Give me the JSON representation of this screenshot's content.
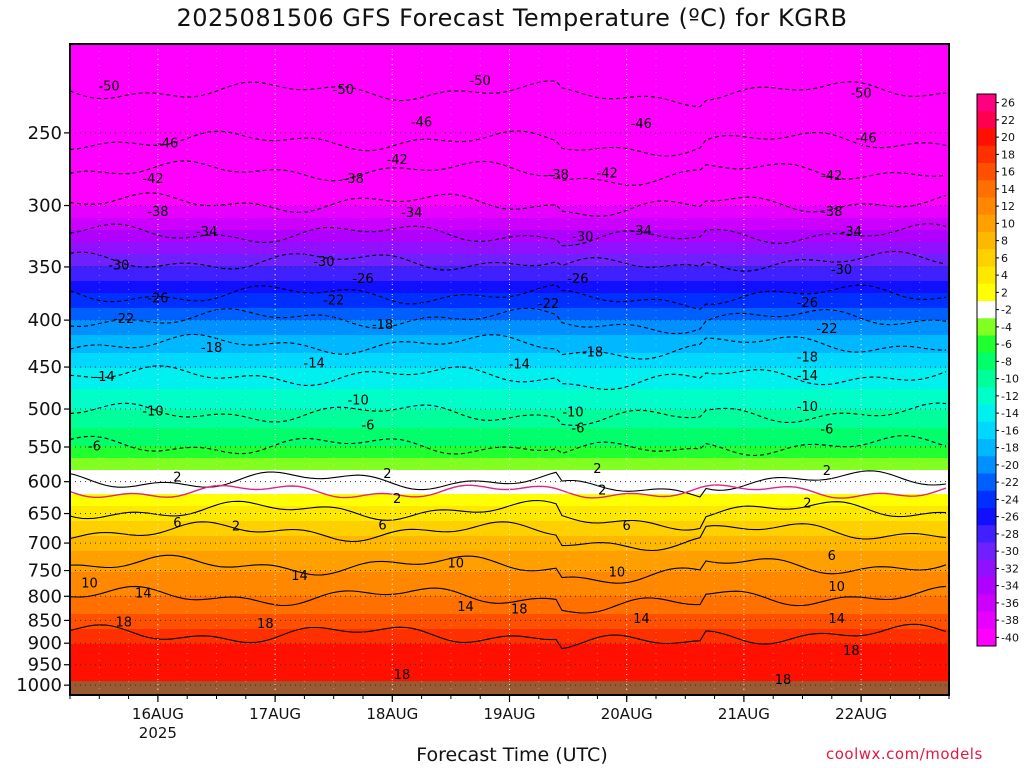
{
  "chart_data": {
    "type": "heatmap",
    "title": "2025081506 GFS Forecast Temperature (ºC) for KGRB",
    "xlabel": "Forecast Time (UTC)",
    "ylabel": "",
    "x_ticks": [
      {
        "label": "16AUG",
        "sublabel": "2025",
        "hours": 18
      },
      {
        "label": "17AUG",
        "sublabel": "",
        "hours": 42
      },
      {
        "label": "18AUG",
        "sublabel": "",
        "hours": 66
      },
      {
        "label": "19AUG",
        "sublabel": "",
        "hours": 90
      },
      {
        "label": "20AUG",
        "sublabel": "",
        "hours": 114
      },
      {
        "label": "21AUG",
        "sublabel": "",
        "hours": 138
      },
      {
        "label": "22AUG",
        "sublabel": "",
        "hours": 162
      }
    ],
    "xlim_hours": [
      0,
      180
    ],
    "y_ticks": [
      250,
      300,
      350,
      400,
      450,
      500,
      550,
      600,
      650,
      700,
      750,
      800,
      850,
      900,
      950,
      1000
    ],
    "ylim_hPa": [
      200,
      1025
    ],
    "y_scale": "log",
    "ground_level_hPa": 1000,
    "colorbar_ticks": [
      26,
      22,
      20,
      18,
      16,
      14,
      12,
      10,
      8,
      6,
      4,
      2,
      -2,
      -4,
      -6,
      -8,
      -10,
      -12,
      -14,
      -16,
      -18,
      -20,
      -22,
      -24,
      -26,
      -28,
      -30,
      -32,
      -34,
      -36,
      -38,
      -40
    ],
    "temperature_profile": [
      {
        "p": 210,
        "t": -53
      },
      {
        "p": 250,
        "t": -46
      },
      {
        "p": 300,
        "t": -38
      },
      {
        "p": 350,
        "t": -28
      },
      {
        "p": 400,
        "t": -20
      },
      {
        "p": 450,
        "t": -14
      },
      {
        "p": 500,
        "t": -10
      },
      {
        "p": 550,
        "t": -6
      },
      {
        "p": 600,
        "t": 0
      },
      {
        "p": 650,
        "t": 5
      },
      {
        "p": 700,
        "t": 9
      },
      {
        "p": 750,
        "t": 12
      },
      {
        "p": 800,
        "t": 14
      },
      {
        "p": 850,
        "t": 17
      },
      {
        "p": 900,
        "t": 20
      },
      {
        "p": 950,
        "t": 21
      },
      {
        "p": 1000,
        "t": 22
      }
    ],
    "contours": [
      {
        "label": "-50",
        "p": 225
      },
      {
        "label": "-46",
        "p": 255
      },
      {
        "label": "-42",
        "p": 275
      },
      {
        "label": "-38",
        "p": 298
      },
      {
        "label": "-34",
        "p": 322
      },
      {
        "label": "-30",
        "p": 345
      },
      {
        "label": "-26",
        "p": 375
      },
      {
        "label": "-22",
        "p": 398
      },
      {
        "label": "-18",
        "p": 425
      },
      {
        "label": "-14",
        "p": 460
      },
      {
        "label": "-10",
        "p": 505
      },
      {
        "label": "-6",
        "p": 548
      },
      {
        "label": "2",
        "p": 598
      },
      {
        "label": "2",
        "p": 645
      },
      {
        "label": "6",
        "p": 680
      },
      {
        "label": "10",
        "p": 740
      },
      {
        "label": "14",
        "p": 800
      },
      {
        "label": "18",
        "p": 880
      }
    ],
    "contour_labels": [
      {
        "label": "-50",
        "x": 8,
        "p": 222
      },
      {
        "label": "-50",
        "x": 56,
        "p": 224
      },
      {
        "label": "-50",
        "x": 84,
        "p": 219
      },
      {
        "label": "-50",
        "x": 162,
        "p": 226
      },
      {
        "label": "-46",
        "x": 20,
        "p": 256
      },
      {
        "label": "-46",
        "x": 72,
        "p": 243
      },
      {
        "label": "-46",
        "x": 117,
        "p": 244
      },
      {
        "label": "-46",
        "x": 163,
        "p": 253
      },
      {
        "label": "-42",
        "x": 17,
        "p": 280
      },
      {
        "label": "-42",
        "x": 67,
        "p": 267
      },
      {
        "label": "-42",
        "x": 110,
        "p": 276
      },
      {
        "label": "-42",
        "x": 156,
        "p": 278
      },
      {
        "label": "-38",
        "x": 18,
        "p": 304
      },
      {
        "label": "-38",
        "x": 58,
        "p": 280
      },
      {
        "label": "-38",
        "x": 100,
        "p": 277
      },
      {
        "label": "-38",
        "x": 156,
        "p": 304
      },
      {
        "label": "-34",
        "x": 28,
        "p": 320
      },
      {
        "label": "-34",
        "x": 70,
        "p": 305
      },
      {
        "label": "-34",
        "x": 117,
        "p": 319
      },
      {
        "label": "-34",
        "x": 160,
        "p": 320
      },
      {
        "label": "-30",
        "x": 10,
        "p": 348
      },
      {
        "label": "-30",
        "x": 52,
        "p": 345
      },
      {
        "label": "-30",
        "x": 105,
        "p": 324
      },
      {
        "label": "-30",
        "x": 158,
        "p": 352
      },
      {
        "label": "-26",
        "x": 18,
        "p": 378
      },
      {
        "label": "-26",
        "x": 60,
        "p": 360
      },
      {
        "label": "-26",
        "x": 104,
        "p": 360
      },
      {
        "label": "-26",
        "x": 151,
        "p": 382
      },
      {
        "label": "-22",
        "x": 11,
        "p": 398
      },
      {
        "label": "-22",
        "x": 54,
        "p": 380
      },
      {
        "label": "-22",
        "x": 98,
        "p": 383
      },
      {
        "label": "-22",
        "x": 155,
        "p": 408
      },
      {
        "label": "-18",
        "x": 29,
        "p": 428
      },
      {
        "label": "-18",
        "x": 64,
        "p": 404
      },
      {
        "label": "-18",
        "x": 107,
        "p": 433
      },
      {
        "label": "-18",
        "x": 151,
        "p": 438
      },
      {
        "label": "-14",
        "x": 7,
        "p": 460
      },
      {
        "label": "-14",
        "x": 50,
        "p": 445
      },
      {
        "label": "-14",
        "x": 92,
        "p": 446
      },
      {
        "label": "-14",
        "x": 151,
        "p": 459
      },
      {
        "label": "-10",
        "x": 17,
        "p": 502
      },
      {
        "label": "-10",
        "x": 59,
        "p": 488
      },
      {
        "label": "-10",
        "x": 103,
        "p": 503
      },
      {
        "label": "-10",
        "x": 151,
        "p": 496
      },
      {
        "label": "-6",
        "x": 5,
        "p": 548
      },
      {
        "label": "-6",
        "x": 61,
        "p": 520
      },
      {
        "label": "-6",
        "x": 104,
        "p": 524
      },
      {
        "label": "-6",
        "x": 155,
        "p": 525
      },
      {
        "label": "2",
        "x": 22,
        "p": 592
      },
      {
        "label": "2",
        "x": 65,
        "p": 587
      },
      {
        "label": "2",
        "x": 108,
        "p": 580
      },
      {
        "label": "2",
        "x": 155,
        "p": 583
      },
      {
        "label": "2",
        "x": 34,
        "p": 670
      },
      {
        "label": "2",
        "x": 67,
        "p": 625
      },
      {
        "label": "2",
        "x": 109,
        "p": 612
      },
      {
        "label": "2",
        "x": 151,
        "p": 632
      },
      {
        "label": "6",
        "x": 22,
        "p": 664
      },
      {
        "label": "6",
        "x": 64,
        "p": 668
      },
      {
        "label": "6",
        "x": 114,
        "p": 669
      },
      {
        "label": "6",
        "x": 156,
        "p": 721
      },
      {
        "label": "10",
        "x": 4,
        "p": 773
      },
      {
        "label": "10",
        "x": 79,
        "p": 735
      },
      {
        "label": "10",
        "x": 112,
        "p": 752
      },
      {
        "label": "10",
        "x": 157,
        "p": 780
      },
      {
        "label": "14",
        "x": 15,
        "p": 792
      },
      {
        "label": "14",
        "x": 47,
        "p": 758
      },
      {
        "label": "14",
        "x": 81,
        "p": 820
      },
      {
        "label": "14",
        "x": 117,
        "p": 845
      },
      {
        "label": "14",
        "x": 157,
        "p": 845
      },
      {
        "label": "18",
        "x": 11,
        "p": 852
      },
      {
        "label": "18",
        "x": 40,
        "p": 855
      },
      {
        "label": "18",
        "x": 68,
        "p": 972
      },
      {
        "label": "18",
        "x": 92,
        "p": 825
      },
      {
        "label": "18",
        "x": 146,
        "p": 985
      },
      {
        "label": "18",
        "x": 160,
        "p": 915
      }
    ],
    "colors": {
      "ground": "#9a5a32",
      "zero_line": "#e0267a",
      "credit": "#e01840"
    }
  },
  "credit": "coolwx.com/models"
}
